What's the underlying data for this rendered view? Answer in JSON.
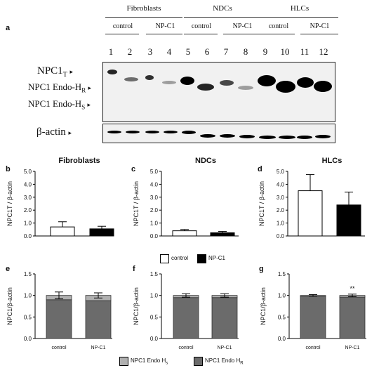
{
  "figure": {
    "panel_a_letter": "a",
    "groups": [
      {
        "title": "Fibroblasts",
        "sub": [
          "control",
          "NP-C1"
        ]
      },
      {
        "title": "NDCs",
        "sub": [
          "control",
          "NP-C1"
        ]
      },
      {
        "title": "HLCs",
        "sub": [
          "control",
          "NP-C1"
        ]
      }
    ],
    "lanes": [
      "1",
      "2",
      "3",
      "4",
      "5",
      "6",
      "7",
      "8",
      "9",
      "10",
      "11",
      "12"
    ],
    "blot_labels": {
      "npc1t_main": "NPC1",
      "npc1t_sub": "T",
      "endo_hr_main": "NPC1 Endo-H",
      "endo_hr_sub": "R",
      "endo_hs_main": "NPC1 Endo-H",
      "endo_hs_sub": "S",
      "actin": "β-actin",
      "arrow": "▸"
    },
    "legend_top": {
      "control": "control",
      "npc1": "NP-C1",
      "control_color": "#ffffff",
      "npc1_color": "#000000"
    },
    "legend_bottom": {
      "hs": "NPC1 Endo H",
      "hs_sub": "s",
      "hr": "NPC1 Endo H",
      "hr_sub": "R",
      "hs_color": "#b0b0b0",
      "hr_color": "#6b6b6b"
    }
  },
  "chart_data": [
    {
      "panel": "b",
      "type": "bar",
      "title": "Fibroblasts",
      "ylabel": "NPC1T / β-actin",
      "categories": [
        "control",
        "NP-C1"
      ],
      "values": [
        0.7,
        0.55
      ],
      "errors": [
        0.4,
        0.2
      ],
      "colors": [
        "#ffffff",
        "#000000"
      ],
      "ylim": [
        0,
        5.0
      ],
      "yticks": [
        "0.0",
        "1.0",
        "2.0",
        "3.0",
        "4.0",
        "5.0"
      ]
    },
    {
      "panel": "c",
      "type": "bar",
      "title": "NDCs",
      "ylabel": "NPC1T / β-actin",
      "categories": [
        "control",
        "NP-C1"
      ],
      "values": [
        0.4,
        0.25
      ],
      "errors": [
        0.1,
        0.1
      ],
      "colors": [
        "#ffffff",
        "#000000"
      ],
      "ylim": [
        0,
        5.0
      ],
      "yticks": [
        "0.0",
        "1.0",
        "2.0",
        "3.0",
        "4.0",
        "5.0"
      ]
    },
    {
      "panel": "d",
      "type": "bar",
      "title": "HLCs",
      "ylabel": "NPC1T / β-actin",
      "categories": [
        "control",
        "NP-C1"
      ],
      "values": [
        3.5,
        2.4
      ],
      "errors": [
        1.25,
        1.0
      ],
      "colors": [
        "#ffffff",
        "#000000"
      ],
      "ylim": [
        0,
        5.0
      ],
      "yticks": [
        "0.0",
        "1.0",
        "2.0",
        "3.0",
        "4.0",
        "5.0"
      ]
    },
    {
      "panel": "e",
      "type": "bar",
      "stacked": true,
      "ylabel": "NPC1/β-actin",
      "categories": [
        "control",
        "NP-C1"
      ],
      "series": [
        {
          "name": "NPC1 Endo HR",
          "values": [
            0.9,
            0.88
          ],
          "color": "#6b6b6b"
        },
        {
          "name": "NPC1 Endo Hs",
          "values": [
            0.1,
            0.12
          ],
          "color": "#b0b0b0"
        }
      ],
      "errors": [
        0.08,
        0.06
      ],
      "ylim": [
        0,
        1.5
      ],
      "yticks": [
        "0.0",
        "0.5",
        "1.0",
        "1.5"
      ]
    },
    {
      "panel": "f",
      "type": "bar",
      "stacked": true,
      "ylabel": "NPC1/β-actin",
      "categories": [
        "control",
        "NP-C1"
      ],
      "series": [
        {
          "name": "NPC1 Endo HR",
          "values": [
            0.95,
            0.95
          ],
          "color": "#6b6b6b"
        },
        {
          "name": "NPC1 Endo Hs",
          "values": [
            0.05,
            0.05
          ],
          "color": "#b0b0b0"
        }
      ],
      "errors": [
        0.04,
        0.04
      ],
      "ylim": [
        0,
        1.5
      ],
      "yticks": [
        "0.0",
        "0.5",
        "1.0",
        "1.5"
      ]
    },
    {
      "panel": "g",
      "type": "bar",
      "stacked": true,
      "ylabel": "NPC1/β-actin",
      "categories": [
        "control",
        "NP-C1"
      ],
      "series": [
        {
          "name": "NPC1 Endo HR",
          "values": [
            0.98,
            0.96
          ],
          "color": "#6b6b6b"
        },
        {
          "name": "NPC1 Endo Hs",
          "values": [
            0.02,
            0.04
          ],
          "color": "#b0b0b0"
        }
      ],
      "errors": [
        0.02,
        0.03
      ],
      "ylim": [
        0,
        1.5
      ],
      "yticks": [
        "0.0",
        "0.5",
        "1.0",
        "1.5"
      ],
      "annotation": "**"
    }
  ]
}
